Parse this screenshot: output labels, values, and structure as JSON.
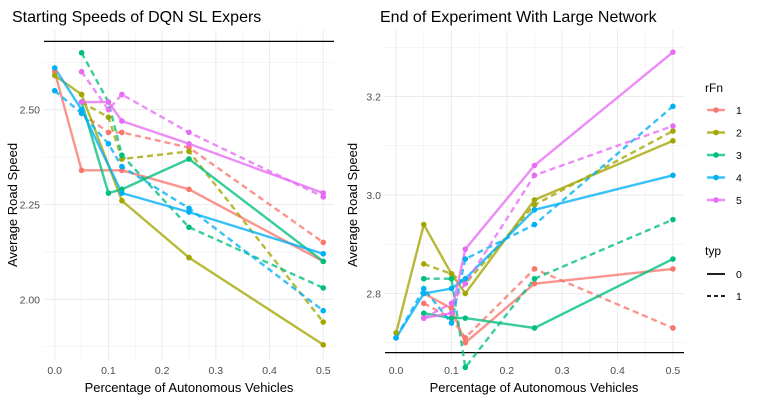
{
  "colors": {
    "1": "#F8766D",
    "2": "#A3A500",
    "3": "#00BF7D",
    "4": "#00B0F6",
    "5": "#E76BF3",
    "grid": "#ebebeb",
    "reference": "#000000"
  },
  "legend": {
    "rfn_title": "rFn",
    "rfn_items": [
      "1",
      "2",
      "3",
      "4",
      "5"
    ],
    "typ_title": "typ",
    "typ_items": [
      "0",
      "1"
    ]
  },
  "chart_data": [
    {
      "type": "line",
      "title": "Starting Speeds of DQN SL Expers",
      "xlabel": "Percentage of Autonomous Vehicles",
      "ylabel": "Average Road Speed",
      "xlim": [
        -0.02,
        0.52
      ],
      "ylim": [
        1.84,
        2.71
      ],
      "xticks": [
        0.0,
        0.1,
        0.2,
        0.3,
        0.4,
        0.5
      ],
      "xtick_labels": [
        "0.0",
        "0.1",
        "0.2",
        "0.3",
        "0.4",
        "0.5"
      ],
      "yticks": [
        2.0,
        2.25,
        2.5
      ],
      "ytick_labels": [
        "2.00",
        "2.25",
        "2.50"
      ],
      "grid": true,
      "reference_line": 2.68,
      "series": [
        {
          "rFn": "1",
          "typ": "0",
          "x": [
            0.0,
            0.05,
            0.125,
            0.25,
            0.5
          ],
          "y": [
            2.6,
            2.34,
            2.34,
            2.29,
            2.1
          ]
        },
        {
          "rFn": "1",
          "typ": "1",
          "x": [
            0.05,
            0.1,
            0.125,
            0.25,
            0.5
          ],
          "y": [
            2.49,
            2.44,
            2.44,
            2.4,
            2.15
          ]
        },
        {
          "rFn": "2",
          "typ": "0",
          "x": [
            0.0,
            0.05,
            0.125,
            0.25,
            0.5
          ],
          "y": [
            2.59,
            2.54,
            2.26,
            2.11,
            1.88
          ]
        },
        {
          "rFn": "2",
          "typ": "1",
          "x": [
            0.05,
            0.1,
            0.125,
            0.25,
            0.5
          ],
          "y": [
            2.52,
            2.48,
            2.37,
            2.39,
            1.94
          ]
        },
        {
          "rFn": "3",
          "typ": "0",
          "x": [
            0.05,
            0.1,
            0.125,
            0.25,
            0.5
          ],
          "y": [
            2.52,
            2.28,
            2.29,
            2.37,
            2.1
          ]
        },
        {
          "rFn": "3",
          "typ": "1",
          "x": [
            0.05,
            0.1,
            0.125,
            0.25,
            0.5
          ],
          "y": [
            2.65,
            2.52,
            2.38,
            2.19,
            2.03
          ]
        },
        {
          "rFn": "4",
          "typ": "0",
          "x": [
            0.0,
            0.05,
            0.125,
            0.25,
            0.5
          ],
          "y": [
            2.61,
            2.5,
            2.28,
            2.23,
            2.12
          ]
        },
        {
          "rFn": "4",
          "typ": "1",
          "x": [
            0.0,
            0.05,
            0.1,
            0.125,
            0.25,
            0.5
          ],
          "y": [
            2.55,
            2.49,
            2.41,
            2.35,
            2.24,
            1.97
          ]
        },
        {
          "rFn": "5",
          "typ": "0",
          "x": [
            0.05,
            0.1,
            0.125,
            0.25,
            0.5
          ],
          "y": [
            2.52,
            2.52,
            2.47,
            2.41,
            2.28
          ]
        },
        {
          "rFn": "5",
          "typ": "1",
          "x": [
            0.05,
            0.1,
            0.125,
            0.25,
            0.5
          ],
          "y": [
            2.6,
            2.5,
            2.54,
            2.44,
            2.27
          ]
        }
      ]
    },
    {
      "type": "line",
      "title": "End of Experiment With Large Network",
      "xlabel": "Percentage of Autonomous Vehicles",
      "ylabel": "Average Road Speed",
      "xlim": [
        -0.02,
        0.52
      ],
      "ylim": [
        2.665,
        3.335
      ],
      "xticks": [
        0.0,
        0.1,
        0.2,
        0.3,
        0.4,
        0.5
      ],
      "xtick_labels": [
        "0.0",
        "0.1",
        "0.2",
        "0.3",
        "0.4",
        "0.5"
      ],
      "yticks": [
        2.8,
        3.0,
        3.2
      ],
      "ytick_labels": [
        "2.8",
        "3.0",
        "3.2"
      ],
      "grid": true,
      "reference_line": 2.68,
      "series": [
        {
          "rFn": "1",
          "typ": "0",
          "x": [
            0.05,
            0.1,
            0.125,
            0.25,
            0.5
          ],
          "y": [
            2.8,
            2.77,
            2.7,
            2.82,
            2.85
          ]
        },
        {
          "rFn": "1",
          "typ": "1",
          "x": [
            0.05,
            0.1,
            0.125,
            0.25,
            0.5
          ],
          "y": [
            2.78,
            2.75,
            2.71,
            2.85,
            2.73
          ]
        },
        {
          "rFn": "2",
          "typ": "0",
          "x": [
            0.0,
            0.05,
            0.1,
            0.125,
            0.25,
            0.5
          ],
          "y": [
            2.72,
            2.94,
            2.84,
            2.8,
            2.99,
            3.11
          ]
        },
        {
          "rFn": "2",
          "typ": "1",
          "x": [
            0.05,
            0.1,
            0.125,
            0.25,
            0.5
          ],
          "y": [
            2.86,
            2.84,
            2.82,
            2.98,
            3.13
          ]
        },
        {
          "rFn": "3",
          "typ": "0",
          "x": [
            0.05,
            0.1,
            0.125,
            0.25,
            0.5
          ],
          "y": [
            2.76,
            2.75,
            2.75,
            2.73,
            2.87
          ]
        },
        {
          "rFn": "3",
          "typ": "1",
          "x": [
            0.05,
            0.1,
            0.125,
            0.25,
            0.5
          ],
          "y": [
            2.83,
            2.83,
            2.65,
            2.83,
            2.95
          ]
        },
        {
          "rFn": "4",
          "typ": "0",
          "x": [
            0.0,
            0.05,
            0.1,
            0.125,
            0.25,
            0.5
          ],
          "y": [
            2.71,
            2.8,
            2.81,
            2.83,
            2.97,
            3.04
          ]
        },
        {
          "rFn": "4",
          "typ": "1",
          "x": [
            0.0,
            0.05,
            0.1,
            0.125,
            0.25,
            0.5
          ],
          "y": [
            2.71,
            2.81,
            2.74,
            2.87,
            2.94,
            3.18
          ]
        },
        {
          "rFn": "5",
          "typ": "0",
          "x": [
            0.05,
            0.1,
            0.125,
            0.25,
            0.5
          ],
          "y": [
            2.75,
            2.76,
            2.89,
            3.06,
            3.29
          ]
        },
        {
          "rFn": "5",
          "typ": "1",
          "x": [
            0.05,
            0.1,
            0.125,
            0.25,
            0.5
          ],
          "y": [
            2.75,
            2.78,
            2.82,
            3.04,
            3.14
          ]
        }
      ]
    }
  ]
}
